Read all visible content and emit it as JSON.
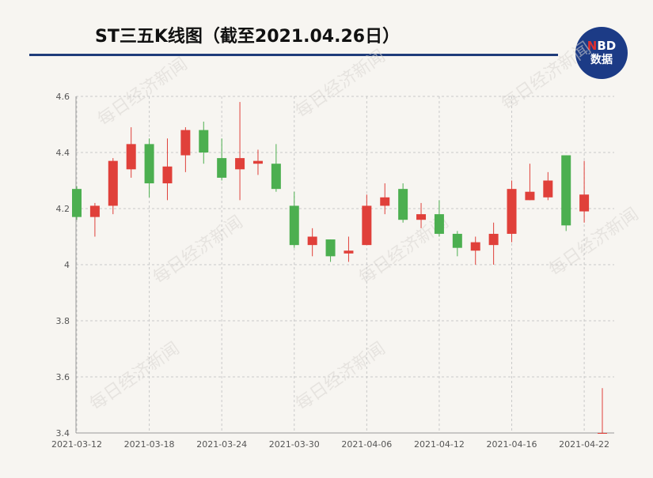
{
  "title": "ST三五K线图（截至2021.04.26日）",
  "logo": {
    "line1_n": "N",
    "line1_rest": "BD",
    "line2": "数据"
  },
  "watermark_text": "每日经济新闻",
  "colors": {
    "up": "#e0403a",
    "down": "#4caf50",
    "grid": "#c9c9c9",
    "title_rule": "#1f3c7a",
    "logo_bg": "#1c3b86"
  },
  "chart_data": {
    "type": "candlestick",
    "ylim": [
      3.4,
      4.6
    ],
    "yticks": [
      "4.6",
      "4.4",
      "4.2",
      "4",
      "3.8",
      "3.6",
      "3.4"
    ],
    "xtick_labels": [
      "2021-03-12",
      "2021-03-18",
      "2021-03-24",
      "2021-03-30",
      "2021-04-06",
      "2021-04-12",
      "2021-04-16",
      "2021-04-22"
    ],
    "grid": true,
    "candles": [
      {
        "date": "2021-03-12",
        "open": 4.27,
        "close": 4.17,
        "high": 4.28,
        "low": 4.16
      },
      {
        "date": "2021-03-15",
        "open": 4.17,
        "close": 4.21,
        "high": 4.22,
        "low": 4.1
      },
      {
        "date": "2021-03-16",
        "open": 4.21,
        "close": 4.37,
        "high": 4.38,
        "low": 4.18
      },
      {
        "date": "2021-03-17",
        "open": 4.34,
        "close": 4.43,
        "high": 4.49,
        "low": 4.31
      },
      {
        "date": "2021-03-18",
        "open": 4.43,
        "close": 4.29,
        "high": 4.45,
        "low": 4.24
      },
      {
        "date": "2021-03-19",
        "open": 4.29,
        "close": 4.35,
        "high": 4.45,
        "low": 4.23
      },
      {
        "date": "2021-03-22",
        "open": 4.39,
        "close": 4.48,
        "high": 4.49,
        "low": 4.33
      },
      {
        "date": "2021-03-23",
        "open": 4.48,
        "close": 4.4,
        "high": 4.51,
        "low": 4.36
      },
      {
        "date": "2021-03-24",
        "open": 4.38,
        "close": 4.31,
        "high": 4.45,
        "low": 4.3
      },
      {
        "date": "2021-03-25",
        "open": 4.34,
        "close": 4.38,
        "high": 4.58,
        "low": 4.23
      },
      {
        "date": "2021-03-26",
        "open": 4.36,
        "close": 4.37,
        "high": 4.41,
        "low": 4.32
      },
      {
        "date": "2021-03-29",
        "open": 4.36,
        "close": 4.27,
        "high": 4.43,
        "low": 4.26
      },
      {
        "date": "2021-03-30",
        "open": 4.21,
        "close": 4.07,
        "high": 4.26,
        "low": 4.06
      },
      {
        "date": "2021-03-31",
        "open": 4.07,
        "close": 4.1,
        "high": 4.13,
        "low": 4.03
      },
      {
        "date": "2021-04-01",
        "open": 4.09,
        "close": 4.03,
        "high": 4.09,
        "low": 4.01
      },
      {
        "date": "2021-04-02",
        "open": 4.04,
        "close": 4.05,
        "high": 4.1,
        "low": 4.01
      },
      {
        "date": "2021-04-06",
        "open": 4.07,
        "close": 4.21,
        "high": 4.25,
        "low": 4.07
      },
      {
        "date": "2021-04-07",
        "open": 4.21,
        "close": 4.24,
        "high": 4.29,
        "low": 4.18
      },
      {
        "date": "2021-04-08",
        "open": 4.27,
        "close": 4.16,
        "high": 4.29,
        "low": 4.15
      },
      {
        "date": "2021-04-09",
        "open": 4.16,
        "close": 4.18,
        "high": 4.22,
        "low": 4.13
      },
      {
        "date": "2021-04-12",
        "open": 4.18,
        "close": 4.11,
        "high": 4.23,
        "low": 4.1
      },
      {
        "date": "2021-04-13",
        "open": 4.11,
        "close": 4.06,
        "high": 4.12,
        "low": 4.03
      },
      {
        "date": "2021-04-14",
        "open": 4.05,
        "close": 4.08,
        "high": 4.1,
        "low": 4.0
      },
      {
        "date": "2021-04-15",
        "open": 4.07,
        "close": 4.11,
        "high": 4.15,
        "low": 4.0
      },
      {
        "date": "2021-04-16",
        "open": 4.11,
        "close": 4.27,
        "high": 4.3,
        "low": 4.08
      },
      {
        "date": "2021-04-19",
        "open": 4.23,
        "close": 4.26,
        "high": 4.36,
        "low": 4.23
      },
      {
        "date": "2021-04-20",
        "open": 4.24,
        "close": 4.3,
        "high": 4.33,
        "low": 4.23
      },
      {
        "date": "2021-04-21",
        "open": 4.39,
        "close": 4.14,
        "high": 4.39,
        "low": 4.12
      },
      {
        "date": "2021-04-22",
        "open": 4.19,
        "close": 4.25,
        "high": 4.37,
        "low": 4.15
      },
      {
        "date": "2021-04-26",
        "open": 3.4,
        "close": 3.4,
        "high": 3.56,
        "low": 3.4
      }
    ]
  }
}
